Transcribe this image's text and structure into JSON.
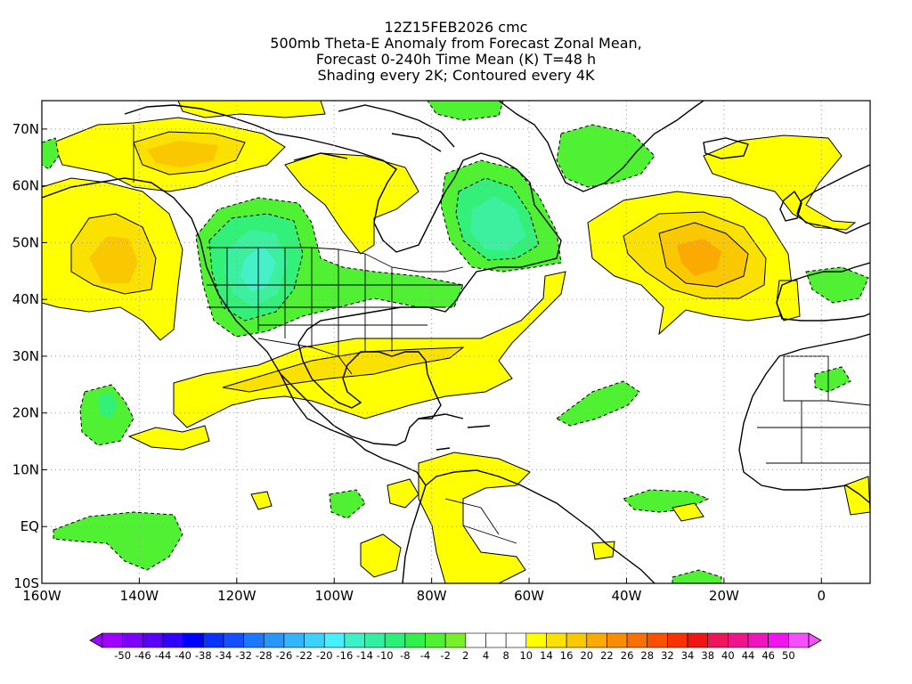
{
  "title": {
    "line1": "12Z15FEB2026 cmc",
    "line2": "500mb Theta-E Anomaly from Forecast Zonal Mean,",
    "line3": "Forecast 0-240h Time Mean (K) T=48 h",
    "line4": "Shading every 2K; Contoured every 4K"
  },
  "map": {
    "projection": "cylindrical equidistant",
    "lon_range": [
      -160,
      10
    ],
    "lat_range": [
      -10,
      75
    ],
    "grid": "dotted",
    "lat_labels": [
      "70N",
      "60N",
      "50N",
      "40N",
      "30N",
      "20N",
      "10N",
      "EQ",
      "10S"
    ],
    "lon_labels": [
      "160W",
      "140W",
      "120W",
      "100W",
      "80W",
      "60W",
      "40W",
      "20W",
      "0"
    ],
    "land_outline_color": "#000000",
    "features": [
      {
        "name": "warm-anomaly-gulf-of-alaska",
        "sign": "positive",
        "peak_K": 8
      },
      {
        "name": "warm-anomaly-north-pacific",
        "sign": "positive",
        "peak_K": 10
      },
      {
        "name": "cold-anomaly-western-us",
        "sign": "negative",
        "peak_K": -14
      },
      {
        "name": "warm-anomaly-hudson-bay",
        "sign": "positive",
        "peak_K": 6
      },
      {
        "name": "cold-anomaly-labrador",
        "sign": "negative",
        "peak_K": -16
      },
      {
        "name": "cold-anomaly-greenland",
        "sign": "negative",
        "peak_K": -8
      },
      {
        "name": "warm-anomaly-east-atlantic",
        "sign": "positive",
        "peak_K": 12
      },
      {
        "name": "warm-anomaly-gulf-coast-band",
        "sign": "positive",
        "peak_K": 8
      },
      {
        "name": "warm-anomaly-scandinavia",
        "sign": "positive",
        "peak_K": 6
      },
      {
        "name": "cold-anomaly-tropical-pacific",
        "sign": "negative",
        "peak_K": -10
      },
      {
        "name": "cold-anomaly-tropical-atlantic",
        "sign": "negative",
        "peak_K": -6
      },
      {
        "name": "warm-anomaly-south-america",
        "sign": "positive",
        "peak_K": 6
      }
    ]
  },
  "colorbar": {
    "labels": [
      "-50",
      "-46",
      "-44",
      "-40",
      "-38",
      "-34",
      "-32",
      "-28",
      "-26",
      "-22",
      "-20",
      "-16",
      "-14",
      "-10",
      "-8",
      "-4",
      "-2",
      "2",
      "4",
      "8",
      "10",
      "14",
      "16",
      "20",
      "22",
      "26",
      "28",
      "32",
      "34",
      "38",
      "40",
      "44",
      "46",
      "50"
    ],
    "colors": [
      "#a000ff",
      "#7d00ff",
      "#5a00ff",
      "#3200ff",
      "#0000ff",
      "#0a32ff",
      "#1450ff",
      "#1e78ff",
      "#2896ff",
      "#32b4ff",
      "#3cd2ff",
      "#46f0ff",
      "#3cf0c8",
      "#32f0a0",
      "#28f078",
      "#32f04b",
      "#50f032",
      "#78f028",
      "#ffffff",
      "#ffffff",
      "#ffffff",
      "#ffff00",
      "#fae100",
      "#fac800",
      "#faaa00",
      "#fa8c00",
      "#fa7000",
      "#fa5000",
      "#fa3200",
      "#f01414",
      "#f0145a",
      "#f0148c",
      "#f014be",
      "#f014f0",
      "#f550ff"
    ]
  }
}
